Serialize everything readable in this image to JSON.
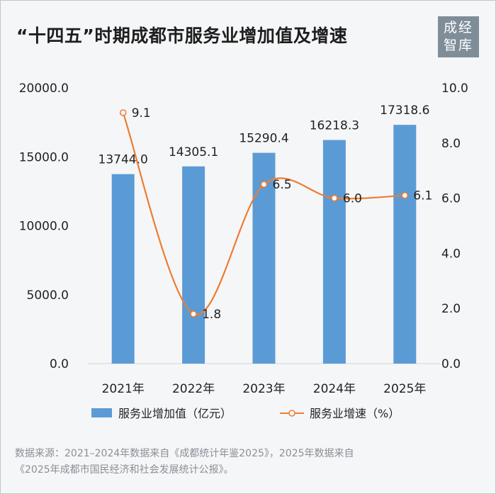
{
  "title": "“十四五”时期成都市服务业增加值及增速",
  "seal": {
    "line1": "成经",
    "line2": "智库"
  },
  "source": {
    "line1": "数据来源：2021–2024年数据来自《成都统计年鉴2025》，2025年数据来自",
    "line2": "《2025年成都市国民经济和社会发展统计公报》。"
  },
  "colors": {
    "bar": "#5b9bd5",
    "line": "#ed7d31",
    "marker_fill": "#ffffff",
    "text": "#222222"
  },
  "chart_data": {
    "type": "bar",
    "categories": [
      "2021年",
      "2022年",
      "2023年",
      "2024年",
      "2025年"
    ],
    "series": [
      {
        "name": "服务业增加值（亿元）",
        "type": "bar",
        "axis": "left",
        "values": [
          13744.0,
          14305.1,
          15290.4,
          16218.3,
          17318.6
        ],
        "labels": [
          "13744.0",
          "14305.1",
          "15290.4",
          "16218.3",
          "17318.6"
        ]
      },
      {
        "name": "服务业增速（%）",
        "type": "line",
        "smooth": true,
        "axis": "right",
        "values": [
          9.1,
          1.8,
          6.5,
          6.0,
          6.1
        ],
        "labels": [
          "9.1",
          "1.8",
          "6.5",
          "6.0",
          "6.1"
        ]
      }
    ],
    "y_left": {
      "min": 0,
      "max": 20000,
      "ticks": [
        "0.0",
        "5000.0",
        "10000.0",
        "15000.0",
        "20000.0"
      ]
    },
    "y_right": {
      "min": 0,
      "max": 10,
      "ticks": [
        "0.0",
        "2.0",
        "4.0",
        "6.0",
        "8.0",
        "10.0"
      ]
    },
    "grid": false,
    "legend": "bottom"
  }
}
